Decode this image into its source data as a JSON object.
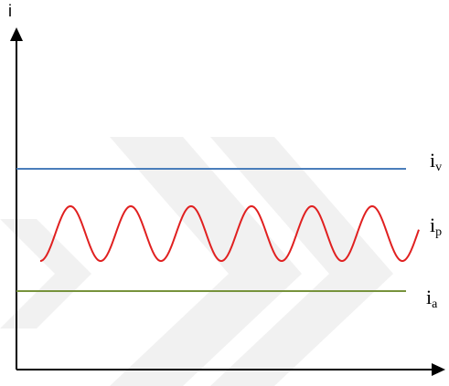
{
  "axes": {
    "y_label": "i",
    "color": "#000000"
  },
  "lines": [
    {
      "key": "v",
      "label_main": "i",
      "label_sub": "v",
      "color": "#4a7ebb"
    },
    {
      "key": "p",
      "label_main": "i",
      "label_sub": "p",
      "color": "#e02020"
    },
    {
      "key": "a",
      "label_main": "i",
      "label_sub": "a",
      "color": "#77933c"
    }
  ],
  "watermark_color": "#f1f1f1"
}
